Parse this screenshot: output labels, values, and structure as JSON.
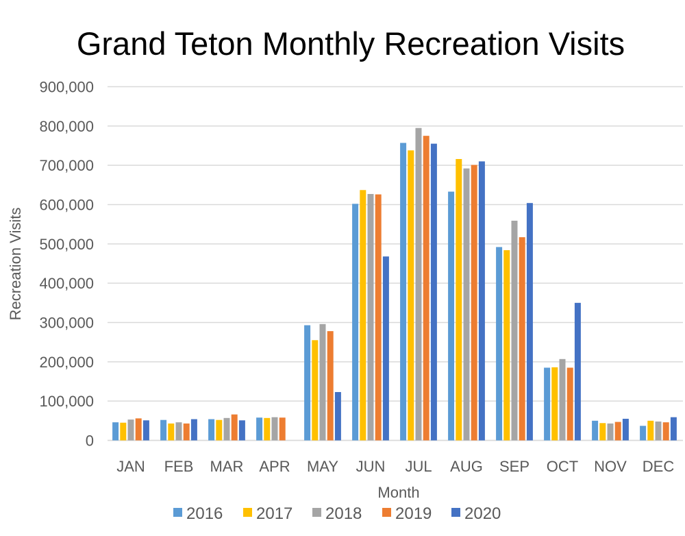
{
  "chart_data": {
    "type": "bar",
    "title": "Grand Teton Monthly Recreation Visits",
    "xlabel": "Month",
    "ylabel": "Recreation Visits",
    "ylim": [
      0,
      900000
    ],
    "yticks": [
      "0",
      "100,000",
      "200,000",
      "300,000",
      "400,000",
      "500,000",
      "600,000",
      "700,000",
      "800,000",
      "900,000"
    ],
    "ytick_values": [
      0,
      100000,
      200000,
      300000,
      400000,
      500000,
      600000,
      700000,
      800000,
      900000
    ],
    "grid": true,
    "legend_position": "bottom",
    "categories": [
      "JAN",
      "FEB",
      "MAR",
      "APR",
      "MAY",
      "JUN",
      "JUL",
      "AUG",
      "SEP",
      "OCT",
      "NOV",
      "DEC"
    ],
    "series": [
      {
        "name": "2016",
        "color": "#5B9BD5",
        "values": [
          46000,
          52000,
          54000,
          58000,
          293000,
          602000,
          757000,
          633000,
          492000,
          185000,
          50000,
          37000
        ]
      },
      {
        "name": "2017",
        "color": "#FFC000",
        "values": [
          45000,
          43000,
          52000,
          57000,
          255000,
          637000,
          738000,
          716000,
          484000,
          186000,
          44000,
          50000
        ]
      },
      {
        "name": "2018",
        "color": "#A5A5A5",
        "values": [
          53000,
          46000,
          57000,
          59000,
          296000,
          627000,
          795000,
          692000,
          559000,
          207000,
          43000,
          48000
        ]
      },
      {
        "name": "2019",
        "color": "#ED7D31",
        "values": [
          56000,
          43000,
          66000,
          58000,
          278000,
          626000,
          775000,
          701000,
          517000,
          185000,
          47000,
          46000
        ]
      },
      {
        "name": "2020",
        "color": "#4472C4",
        "values": [
          51000,
          54000,
          51000,
          0,
          123000,
          468000,
          755000,
          710000,
          604000,
          350000,
          55000,
          59000
        ]
      }
    ]
  }
}
